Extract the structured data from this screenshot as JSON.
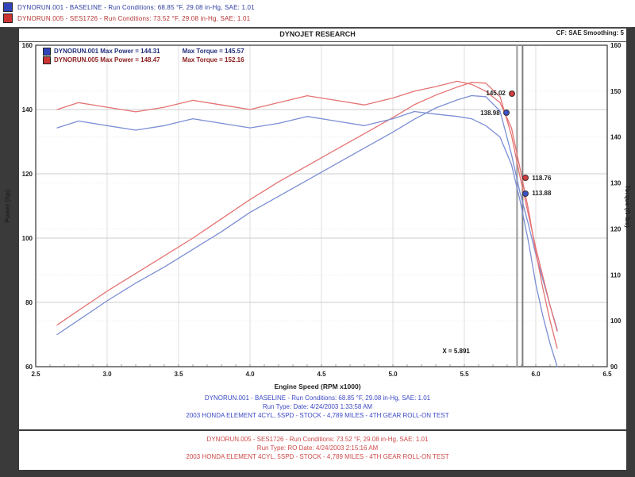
{
  "header": {
    "runs": [
      {
        "swatch": "#3344bb",
        "label": "DYNORUN.001 - BASELINE  -  Run Conditions: 68.85 °F, 29.08 in-Hg, SAE: 1.01"
      },
      {
        "swatch": "#cc3333",
        "label": "DYNORUN.005 - SES1726  -  Run Conditions: 73.52 °F, 29.08 in-Hg, SAE: 1.01"
      }
    ]
  },
  "chart": {
    "title": "DYNOJET RESEARCH",
    "corner_label": "CF: SAE   Smoothing: 5",
    "legend": [
      {
        "swatch": "#3344bb",
        "power_text": "DYNORUN.001 Max Power = 144.31",
        "torque_text": "Max Torque = 145.57"
      },
      {
        "swatch": "#cc3333",
        "power_text": "DYNORUN.005 Max Power = 148.47",
        "torque_text": "Max Torque = 152.16"
      }
    ]
  },
  "chart_data": {
    "type": "line",
    "title": "DYNOJET RESEARCH",
    "xlabel": "Engine Speed (RPM x1000)",
    "ylabel_left": "Power (hp)",
    "ylabel_right": "Torque (ft-lbs)",
    "x_range": [
      2.5,
      6.5
    ],
    "power_range": [
      60,
      160
    ],
    "torque_range": [
      90,
      160
    ],
    "x_ticks": [
      "2.5",
      "3.0",
      "3.5",
      "4.0",
      "4.5",
      "5.0",
      "5.5",
      "6.0",
      "6.5"
    ],
    "left_ticks": [
      "160",
      "140",
      "120",
      "100",
      "80",
      "60"
    ],
    "right_ticks": [
      "160",
      "150",
      "140",
      "130",
      "120",
      "110",
      "100",
      "90"
    ],
    "grid": true,
    "legend_position": "top-left",
    "rpm": [
      2.65,
      2.8,
      3.0,
      3.2,
      3.4,
      3.6,
      3.8,
      4.0,
      4.2,
      4.4,
      4.6,
      4.8,
      5.0,
      5.15,
      5.3,
      5.45,
      5.55,
      5.65,
      5.75,
      5.83,
      5.891,
      5.95,
      6.0,
      6.05,
      6.1,
      6.15
    ],
    "series": [
      {
        "name": "DYNORUN.001 Power",
        "axis": "power",
        "color": "#7b8fd4",
        "values": [
          70,
          74.5,
          80.5,
          86,
          91,
          96.5,
          102,
          108,
          113,
          118,
          123,
          128,
          133,
          137,
          140.5,
          143,
          144.31,
          144,
          139.5,
          126,
          113.88,
          104,
          95,
          87,
          79,
          71.5
        ]
      },
      {
        "name": "DYNORUN.005 Power",
        "axis": "power",
        "color": "#e57373",
        "values": [
          73,
          77.5,
          83.5,
          89,
          94.5,
          100,
          106,
          112,
          117.5,
          122.5,
          127.5,
          132.5,
          137.5,
          141.5,
          144.5,
          147,
          148.47,
          148.2,
          144,
          132,
          118.76,
          107,
          97,
          88,
          79,
          71
        ]
      },
      {
        "name": "DYNORUN.001 Torque",
        "axis": "torque",
        "color": "#7b8fd4",
        "values": [
          142,
          143.5,
          142.5,
          141.5,
          142.5,
          144,
          143,
          142,
          143,
          144.5,
          143.5,
          142.5,
          144,
          145.57,
          145,
          144.5,
          144,
          142.5,
          140,
          134,
          126,
          117,
          108,
          101,
          95,
          90
        ]
      },
      {
        "name": "DYNORUN.005 Torque",
        "axis": "torque",
        "color": "#e57373",
        "values": [
          146,
          147.5,
          146.5,
          145.5,
          146.5,
          148,
          147,
          146,
          147.5,
          149,
          148,
          147,
          148.5,
          150,
          151,
          152.16,
          151.5,
          150,
          147.5,
          142,
          133,
          124,
          115,
          107,
          100,
          94
        ]
      }
    ],
    "cursor": {
      "x": 5.891,
      "label": "X = 5.891"
    },
    "callouts": [
      {
        "label": "145.02",
        "color": "#d23c3c",
        "rpm": 5.83,
        "value": 145.02,
        "axis": "power",
        "side": "left"
      },
      {
        "label": "138.98",
        "color": "#3c50c8",
        "rpm": 5.79,
        "value": 138.98,
        "axis": "power",
        "side": "left"
      },
      {
        "label": "118.76",
        "color": "#d23c3c",
        "rpm": 5.93,
        "value": 118.76,
        "axis": "power",
        "side": "right"
      },
      {
        "label": "113.88",
        "color": "#3c50c8",
        "rpm": 5.93,
        "value": 113.88,
        "axis": "power",
        "side": "right"
      }
    ]
  },
  "footer": {
    "baseline": {
      "lines": [
        "DYNORUN.001 - BASELINE  -  Run Conditions: 68.85 °F, 29.08 in-Hg, SAE: 1.01",
        "Run Type:    Date: 4/24/2003 1:33:58 AM",
        "2003 HONDA ELEMENT 4CYL, 5SPD   -   STOCK   -   4,789 MILES   -   4TH GEAR ROLL-ON TEST"
      ]
    },
    "modified": {
      "lines": [
        "DYNORUN.005 - SES1726  -  Run Conditions: 73.52 °F, 29.08 in-Hg, SAE: 1.01",
        "Run Type: RO  Date: 4/24/2003 2:15:16 AM",
        "2003 HONDA ELEMENT 4CYL, 5SPD   -   STOCK   -   4,789 MILES   -   4TH GEAR ROLL-ON TEST"
      ]
    }
  }
}
